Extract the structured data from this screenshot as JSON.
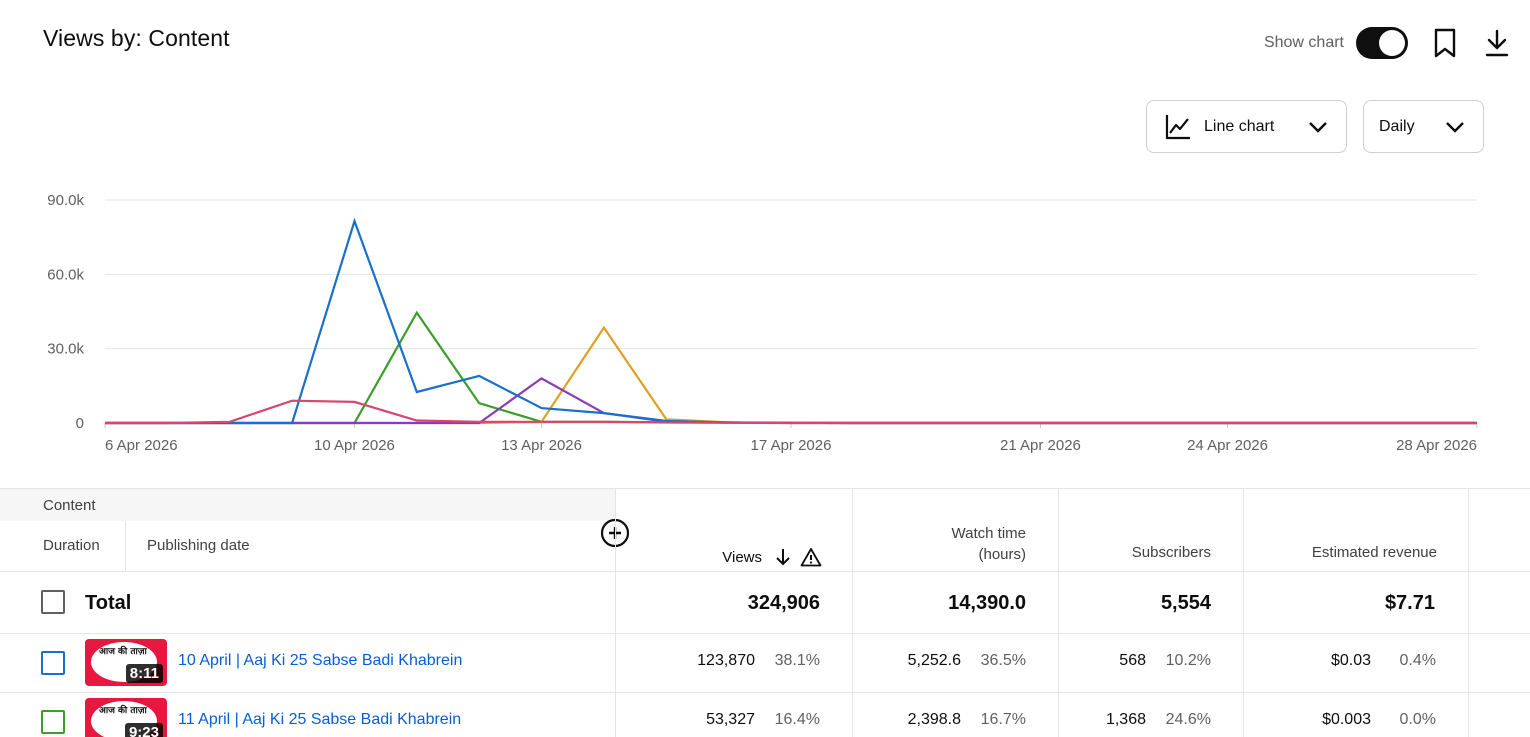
{
  "header": {
    "title": "Views by: Content"
  },
  "controls": {
    "show_chart_label": "Show chart",
    "show_chart_on": true,
    "chart_type_label": "Line chart",
    "interval_label": "Daily",
    "bookmark_icon": "bookmark-icon",
    "download_icon": "download-icon"
  },
  "chart_data": {
    "type": "line",
    "x_dates": [
      "6 Apr",
      "7 Apr",
      "8 Apr",
      "9 Apr",
      "10 Apr",
      "11 Apr",
      "12 Apr",
      "13 Apr",
      "14 Apr",
      "15 Apr",
      "16 Apr",
      "17 Apr",
      "18 Apr",
      "19 Apr",
      "20 Apr",
      "21 Apr",
      "22 Apr",
      "23 Apr",
      "24 Apr",
      "25 Apr",
      "26 Apr",
      "27 Apr",
      "28 Apr"
    ],
    "x_tick_labels": [
      "6 Apr 2026",
      "10 Apr 2026",
      "13 Apr 2026",
      "17 Apr 2026",
      "21 Apr 2026",
      "24 Apr 2026",
      "28 Apr 2026"
    ],
    "x_tick_index": [
      0,
      4,
      7,
      11,
      15,
      18,
      22
    ],
    "y_ticks": [
      0,
      30000,
      60000,
      90000
    ],
    "y_tick_labels": [
      "0",
      "30.0k",
      "60.0k",
      "90.0k"
    ],
    "ylim": [
      0,
      90000
    ],
    "grid": true,
    "series": [
      {
        "color": "#3c9e2a",
        "values": [
          0,
          0,
          0,
          0,
          0,
          44500,
          8000,
          500,
          500,
          300,
          200,
          100,
          0,
          0,
          0,
          0,
          0,
          0,
          0,
          0,
          0,
          0,
          0
        ]
      },
      {
        "color": "#e0a020",
        "values": [
          0,
          0,
          0,
          0,
          0,
          0,
          0,
          500,
          38500,
          1500,
          300,
          100,
          0,
          0,
          0,
          0,
          0,
          0,
          0,
          0,
          0,
          0,
          0
        ]
      },
      {
        "color": "#8e3ab7",
        "values": [
          0,
          0,
          0,
          0,
          0,
          0,
          0,
          18000,
          4000,
          500,
          200,
          0,
          0,
          0,
          0,
          0,
          0,
          0,
          0,
          0,
          0,
          0,
          0
        ]
      },
      {
        "color": "#1a6fcc",
        "values": [
          0,
          0,
          0,
          0,
          81500,
          12500,
          19000,
          6000,
          4000,
          800,
          200,
          100,
          0,
          0,
          0,
          0,
          0,
          0,
          0,
          0,
          0,
          0,
          0
        ]
      },
      {
        "color": "#d6476e",
        "values": [
          0,
          0,
          500,
          9000,
          8500,
          1000,
          500,
          500,
          500,
          200,
          100,
          0,
          0,
          0,
          0,
          0,
          0,
          0,
          0,
          0,
          0,
          0,
          0
        ]
      }
    ]
  },
  "table": {
    "headers": {
      "content": "Content",
      "duration": "Duration",
      "publishing_date": "Publishing date",
      "views": "Views",
      "watch_time_1": "Watch time",
      "watch_time_2": "(hours)",
      "subscribers": "Subscribers",
      "revenue": "Estimated revenue"
    },
    "total": {
      "label": "Total",
      "views": "324,906",
      "watch": "14,390.0",
      "subs": "5,554",
      "revenue": "$7.71"
    },
    "rows": [
      {
        "color": "#1a6fcc",
        "thumb_text": "आज की ताज़ा",
        "duration": "8:11",
        "title": "10 April | Aaj Ki 25 Sabse Badi Khabrein",
        "views": "123,870",
        "views_pct": "38.1%",
        "watch": "5,252.6",
        "watch_pct": "36.5%",
        "subs": "568",
        "subs_pct": "10.2%",
        "revenue": "$0.03",
        "revenue_pct": "0.4%"
      },
      {
        "color": "#3c9e2a",
        "thumb_text": "आज की ताज़ा",
        "duration": "9:23",
        "title": "11 April | Aaj Ki 25 Sabse Badi Khabrein",
        "views": "53,327",
        "views_pct": "16.4%",
        "watch": "2,398.8",
        "watch_pct": "16.7%",
        "subs": "1,368",
        "subs_pct": "24.6%",
        "revenue": "$0.003",
        "revenue_pct": "0.0%"
      }
    ]
  }
}
